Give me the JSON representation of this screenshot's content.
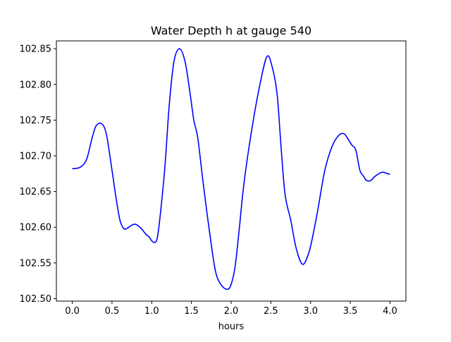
{
  "chart_data": {
    "type": "line",
    "title": "Water Depth h at gauge 540",
    "xlabel": "hours",
    "ylabel": "",
    "xlim": [
      -0.2,
      4.2
    ],
    "ylim": [
      102.4965,
      102.861
    ],
    "xticks": [
      "0.0",
      "0.5",
      "1.0",
      "1.5",
      "2.0",
      "2.5",
      "3.0",
      "3.5",
      "4.0"
    ],
    "yticks": [
      "102.50",
      "102.55",
      "102.60",
      "102.65",
      "102.70",
      "102.75",
      "102.80",
      "102.85"
    ],
    "grid": false,
    "series": [
      {
        "color": "#0000ff",
        "x": [
          0.0,
          0.1,
          0.18,
          0.25,
          0.3,
          0.37,
          0.43,
          0.5,
          0.55,
          0.6,
          0.65,
          0.7,
          0.75,
          0.8,
          0.87,
          0.92,
          0.97,
          1.02,
          1.07,
          1.12,
          1.17,
          1.22,
          1.28,
          1.35,
          1.42,
          1.48,
          1.53,
          1.58,
          1.65,
          1.72,
          1.8,
          1.87,
          1.95,
          2.0,
          2.05,
          2.1,
          2.16,
          2.25,
          2.35,
          2.45,
          2.52,
          2.58,
          2.63,
          2.68,
          2.75,
          2.82,
          2.9,
          2.98,
          3.05,
          3.1,
          3.18,
          3.27,
          3.35,
          3.42,
          3.48,
          3.52,
          3.57,
          3.62,
          3.67,
          3.7,
          3.75,
          3.82,
          3.9,
          3.97,
          4.0
        ],
        "y": [
          102.682,
          102.684,
          102.695,
          102.725,
          102.742,
          102.745,
          102.73,
          102.68,
          102.642,
          102.61,
          102.598,
          102.599,
          102.603,
          102.604,
          102.598,
          102.591,
          102.586,
          102.579,
          102.585,
          102.63,
          102.69,
          102.77,
          102.832,
          102.85,
          102.832,
          102.79,
          102.75,
          102.725,
          102.66,
          102.6,
          102.54,
          102.52,
          102.513,
          102.52,
          102.545,
          102.595,
          102.66,
          102.73,
          102.793,
          102.839,
          102.823,
          102.785,
          102.71,
          102.645,
          102.61,
          102.57,
          102.548,
          102.565,
          102.6,
          102.63,
          102.68,
          102.713,
          102.728,
          102.731,
          102.722,
          102.715,
          102.708,
          102.68,
          102.671,
          102.666,
          102.665,
          102.672,
          102.677,
          102.675,
          102.674
        ]
      }
    ]
  }
}
